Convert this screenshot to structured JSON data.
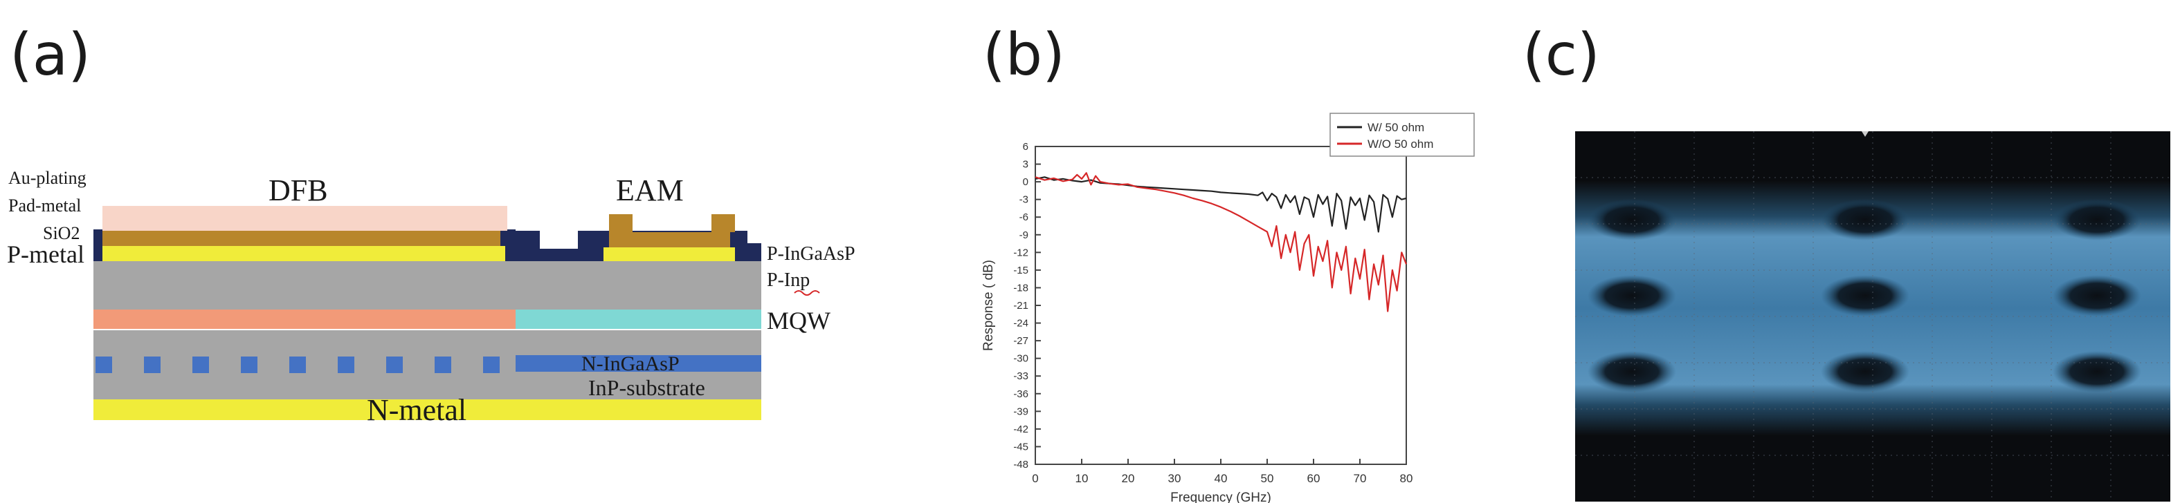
{
  "panels": {
    "a": {
      "label": "(a)",
      "texts": {
        "dfb": "DFB",
        "eam": "EAM",
        "au_plating": "Au-plating",
        "pad_metal": "Pad-metal",
        "sio2": "SiO2",
        "p_metal": "P-metal",
        "p_ingaasp": "P-InGaAsP",
        "p_inp": "P-Inp",
        "mqw": "MQW",
        "n_ingaasp": "N-InGaAsP",
        "inp_substrate": "InP-substrate",
        "n_metal": "N-metal"
      },
      "colors": {
        "pad": "#f8d5c8",
        "au": "#b8862b",
        "sio2": "#1f2a5a",
        "metal": "#f0ec3a",
        "inp": "#a6a6a6",
        "mqw_dfb": "#f29a78",
        "mqw_eam": "#7fd8d4",
        "grating": "#4472c4"
      }
    },
    "b": {
      "label": "(b)"
    },
    "c": {
      "label": "(c)"
    }
  },
  "chart_data": {
    "type": "line",
    "title": "",
    "xlabel": "Frequency (GHz)",
    "ylabel": "Response ( dB)",
    "xlim": [
      0,
      80
    ],
    "ylim": [
      -48,
      6
    ],
    "xticks": [
      0,
      10,
      20,
      30,
      40,
      50,
      60,
      70,
      80
    ],
    "yticks": [
      6,
      3,
      0,
      -3,
      -6,
      -9,
      -12,
      -15,
      -18,
      -21,
      -24,
      -27,
      -30,
      -33,
      -36,
      -39,
      -42,
      -45,
      -48
    ],
    "legend_position": "top-right",
    "series": [
      {
        "name": "W/ 50 ohm",
        "color": "#222222",
        "x": [
          0,
          2,
          4,
          6,
          8,
          10,
          12,
          14,
          16,
          18,
          20,
          22,
          24,
          26,
          28,
          30,
          32,
          34,
          36,
          38,
          40,
          42,
          44,
          46,
          48,
          49,
          50,
          51,
          52,
          53,
          54,
          55,
          56,
          57,
          58,
          59,
          60,
          61,
          62,
          63,
          64,
          65,
          66,
          67,
          68,
          69,
          70,
          71,
          72,
          73,
          74,
          75,
          76,
          77,
          78,
          79,
          80
        ],
        "y": [
          0.5,
          0.8,
          0.3,
          0.5,
          0.2,
          0.0,
          0.3,
          -0.2,
          -0.3,
          -0.4,
          -0.6,
          -0.8,
          -0.9,
          -1.0,
          -1.1,
          -1.2,
          -1.3,
          -1.4,
          -1.5,
          -1.6,
          -1.8,
          -1.9,
          -2.0,
          -2.1,
          -2.3,
          -1.8,
          -3.2,
          -2.0,
          -2.6,
          -4.5,
          -2.2,
          -3.5,
          -2.4,
          -5.5,
          -2.6,
          -3.0,
          -6.0,
          -2.2,
          -3.8,
          -2.5,
          -7.5,
          -2.0,
          -3.2,
          -8.0,
          -2.6,
          -4.0,
          -2.8,
          -6.5,
          -2.3,
          -3.4,
          -8.5,
          -2.2,
          -2.9,
          -6.0,
          -2.4,
          -3.0,
          -2.8
        ]
      },
      {
        "name": "W/O 50 ohm",
        "color": "#d62728",
        "x": [
          0,
          2,
          4,
          6,
          8,
          9,
          10,
          11,
          12,
          13,
          14,
          16,
          18,
          20,
          22,
          24,
          26,
          28,
          30,
          32,
          34,
          36,
          38,
          40,
          42,
          44,
          46,
          48,
          50,
          51,
          52,
          53,
          54,
          55,
          56,
          57,
          58,
          59,
          60,
          61,
          62,
          63,
          64,
          65,
          66,
          67,
          68,
          69,
          70,
          71,
          72,
          73,
          74,
          75,
          76,
          77,
          78,
          79,
          80
        ],
        "y": [
          0.8,
          0.3,
          0.6,
          0.1,
          0.4,
          1.2,
          0.5,
          1.5,
          -0.5,
          1.0,
          0.0,
          -0.3,
          -0.5,
          -0.4,
          -0.9,
          -1.1,
          -1.3,
          -1.6,
          -1.9,
          -2.3,
          -2.8,
          -3.2,
          -3.7,
          -4.3,
          -5.0,
          -5.8,
          -6.7,
          -7.6,
          -8.5,
          -11.0,
          -7.5,
          -13.0,
          -9.0,
          -12.0,
          -8.5,
          -15.0,
          -10.5,
          -9.0,
          -16.0,
          -11.0,
          -13.5,
          -10.0,
          -18.0,
          -12.0,
          -15.0,
          -11.0,
          -19.0,
          -13.0,
          -16.5,
          -11.5,
          -20.0,
          -14.0,
          -17.5,
          -12.5,
          -22.0,
          -15.0,
          -18.5,
          -12.0,
          -14.0
        ]
      }
    ]
  }
}
